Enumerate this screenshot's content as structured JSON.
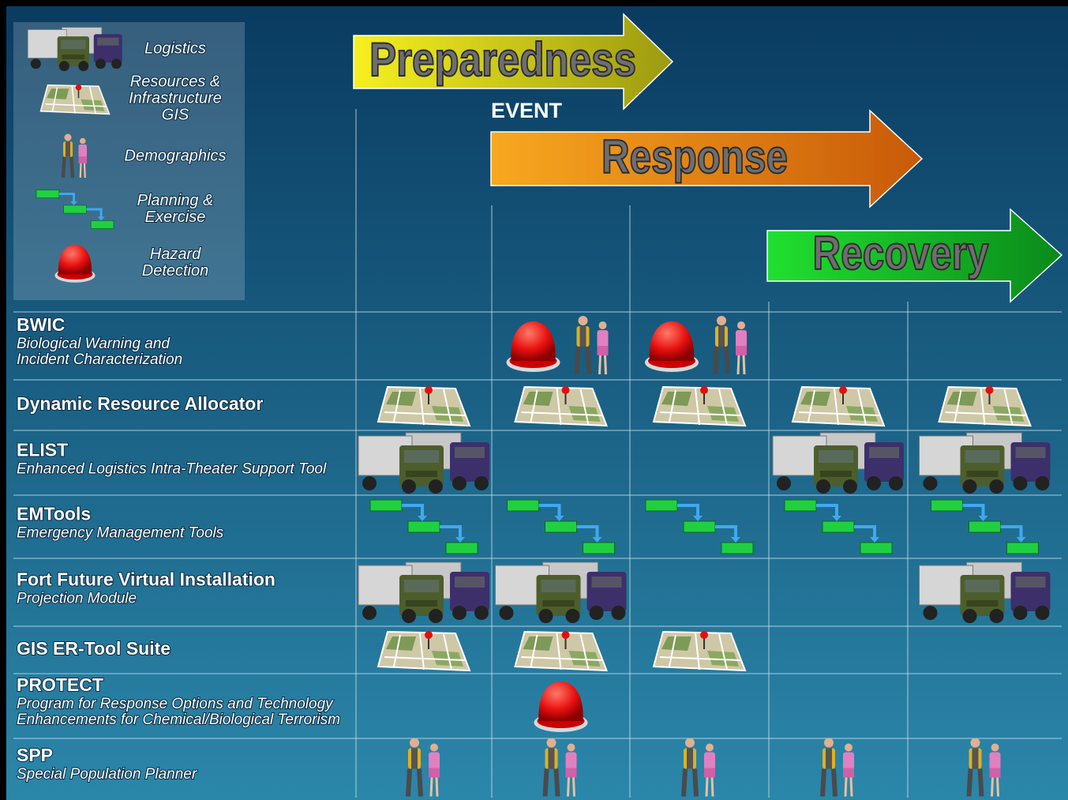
{
  "legend": [
    {
      "lines": [
        "Logistics"
      ]
    },
    {
      "lines": [
        "Resources &",
        "Infrastructure",
        "GIS"
      ]
    },
    {
      "lines": [
        "Demographics"
      ]
    },
    {
      "lines": [
        "Planning &",
        "Exercise"
      ]
    },
    {
      "lines": [
        "Hazard",
        "Detection"
      ]
    }
  ],
  "phases": [
    "Preparedness",
    "Response",
    "Recovery"
  ],
  "event": "EVENT",
  "rows": [
    {
      "name": "BWIC",
      "desc": [
        "Biological Warning and",
        "Incident Characterization"
      ]
    },
    {
      "name": "Dynamic Resource Allocator",
      "desc": []
    },
    {
      "name": "ELIST",
      "desc": [
        "Enhanced Logistics Intra-Theater Support Tool"
      ]
    },
    {
      "name": "EMTools",
      "desc": [
        "Emergency Management Tools"
      ]
    },
    {
      "name": "Fort Future Virtual Installation",
      "desc": [
        "Projection Module"
      ]
    },
    {
      "name": "GIS ER-Tool Suite",
      "desc": []
    },
    {
      "name": "PROTECT",
      "desc": [
        "Program for Response Options and Technology",
        "Enhancements for Chemical/Biological Terrorism"
      ]
    },
    {
      "name": "SPP",
      "desc": [
        "Special Population Planner"
      ]
    }
  ]
}
